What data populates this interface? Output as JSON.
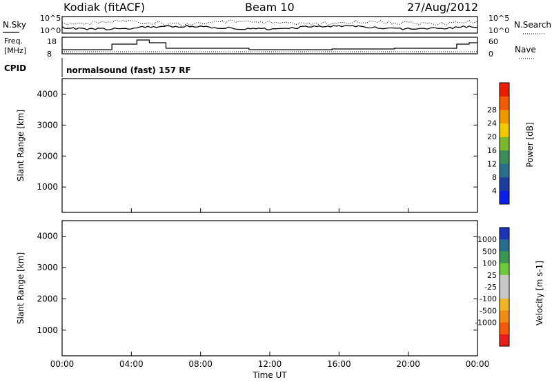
{
  "header": {
    "station": "Kodiak (fitACF)",
    "beam": "Beam 10",
    "date": "27/Aug/2012"
  },
  "noise_panel": {
    "left_label": "N.Sky",
    "right_label": "N.Search",
    "left_ticks": [
      "10^5",
      "10^0"
    ],
    "right_ticks": [
      "10^5",
      "10^0"
    ]
  },
  "freq_panel": {
    "left_label_1": "Freq.",
    "left_label_2": "[MHz]",
    "right_label": "Nave",
    "left_ticks": [
      "18",
      "8"
    ],
    "right_ticks": [
      "60",
      "0"
    ]
  },
  "cpid": {
    "label": "CPID",
    "program": "normalsound (fast) 157 RF"
  },
  "chart_data": [
    {
      "type": "heatmap",
      "quantity": "Power",
      "ylabel": "Slant Range [km]",
      "xlabel": "Time UT",
      "x_ticks": [
        "00:00",
        "04:00",
        "08:00",
        "12:00",
        "16:00",
        "20:00",
        "00:00"
      ],
      "y_ticks": [
        "1000",
        "2000",
        "3000",
        "4000"
      ],
      "ylim": [
        180,
        4500
      ],
      "colorbar": {
        "label": "Power [dB]",
        "ticks": [
          "4",
          "8",
          "12",
          "16",
          "20",
          "24",
          "28"
        ],
        "colors": [
          "#0a1ee6",
          "#1e3ca0",
          "#2a6e8c",
          "#3c8c5a",
          "#7ab82e",
          "#f0c800",
          "#f09600",
          "#f05a00",
          "#e61e00"
        ]
      }
    },
    {
      "type": "heatmap",
      "quantity": "Velocity",
      "ylabel": "Slant Range [km]",
      "xlabel": "Time UT",
      "x_ticks": [
        "00:00",
        "04:00",
        "08:00",
        "12:00",
        "16:00",
        "20:00",
        "00:00"
      ],
      "y_ticks": [
        "1000",
        "2000",
        "3000",
        "4000"
      ],
      "ylim": [
        180,
        4500
      ],
      "colorbar": {
        "label": "Velocity [m s-1]",
        "ticks": [
          "1000",
          "500",
          "100",
          "25",
          "-25",
          "-100",
          "-500",
          "-1000"
        ],
        "colors": [
          "#1e32b4",
          "#286e8c",
          "#3c9650",
          "#6ec83c",
          "#c8c8c8",
          "#c8c8c8",
          "#f0b428",
          "#f08c14",
          "#f05a0a",
          "#e61e1e"
        ]
      }
    }
  ],
  "xaxis": {
    "title": "Time UT"
  }
}
